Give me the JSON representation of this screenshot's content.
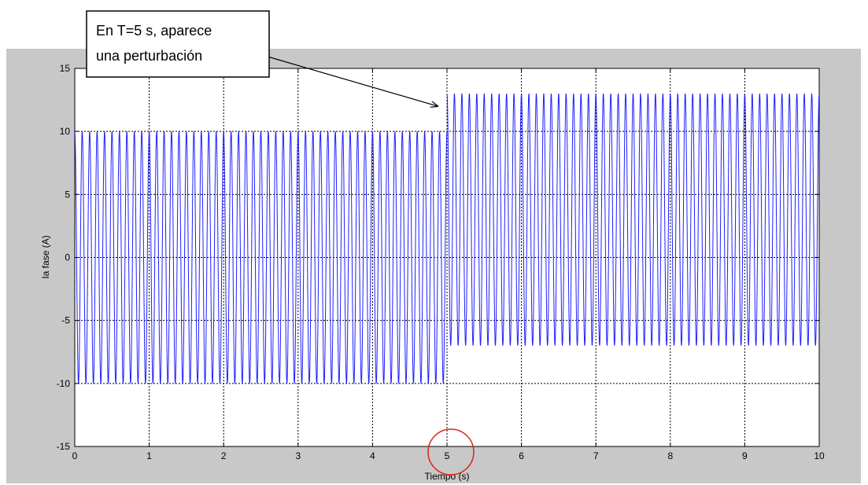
{
  "chart_data": {
    "type": "line",
    "title": "",
    "xlabel": "Tiempo (s)",
    "ylabel": "Ia fase (A)",
    "xlim": [
      0,
      10
    ],
    "ylim": [
      -15,
      15
    ],
    "xticks": [
      "0",
      "1",
      "2",
      "3",
      "4",
      "5",
      "6",
      "7",
      "8",
      "9",
      "10"
    ],
    "yticks": [
      "15",
      "10",
      "5",
      "0",
      "-5",
      "-10",
      "-15"
    ],
    "grid": true,
    "series": [
      {
        "signal": "sinusoid",
        "segments": [
          {
            "t_start": 0,
            "t_end": 5,
            "max": 10,
            "min": -10
          },
          {
            "t_start": 5,
            "t_end": 10,
            "max": 13,
            "min": -7
          }
        ],
        "cycles_per_second": 10,
        "color": "#1f1fff"
      }
    ],
    "annotation": {
      "line1": "En T=5 s, aparece",
      "line2": "una perturbación",
      "points_to": {
        "x": 5,
        "y": 13
      }
    },
    "highlight_circle": {
      "x": 5,
      "color": "#e0201a"
    }
  },
  "colors": {
    "background_frame": "#c8c8c8",
    "plot_area": "#ffffff",
    "signal": "#1f1fff",
    "circle": "#e0201a"
  }
}
